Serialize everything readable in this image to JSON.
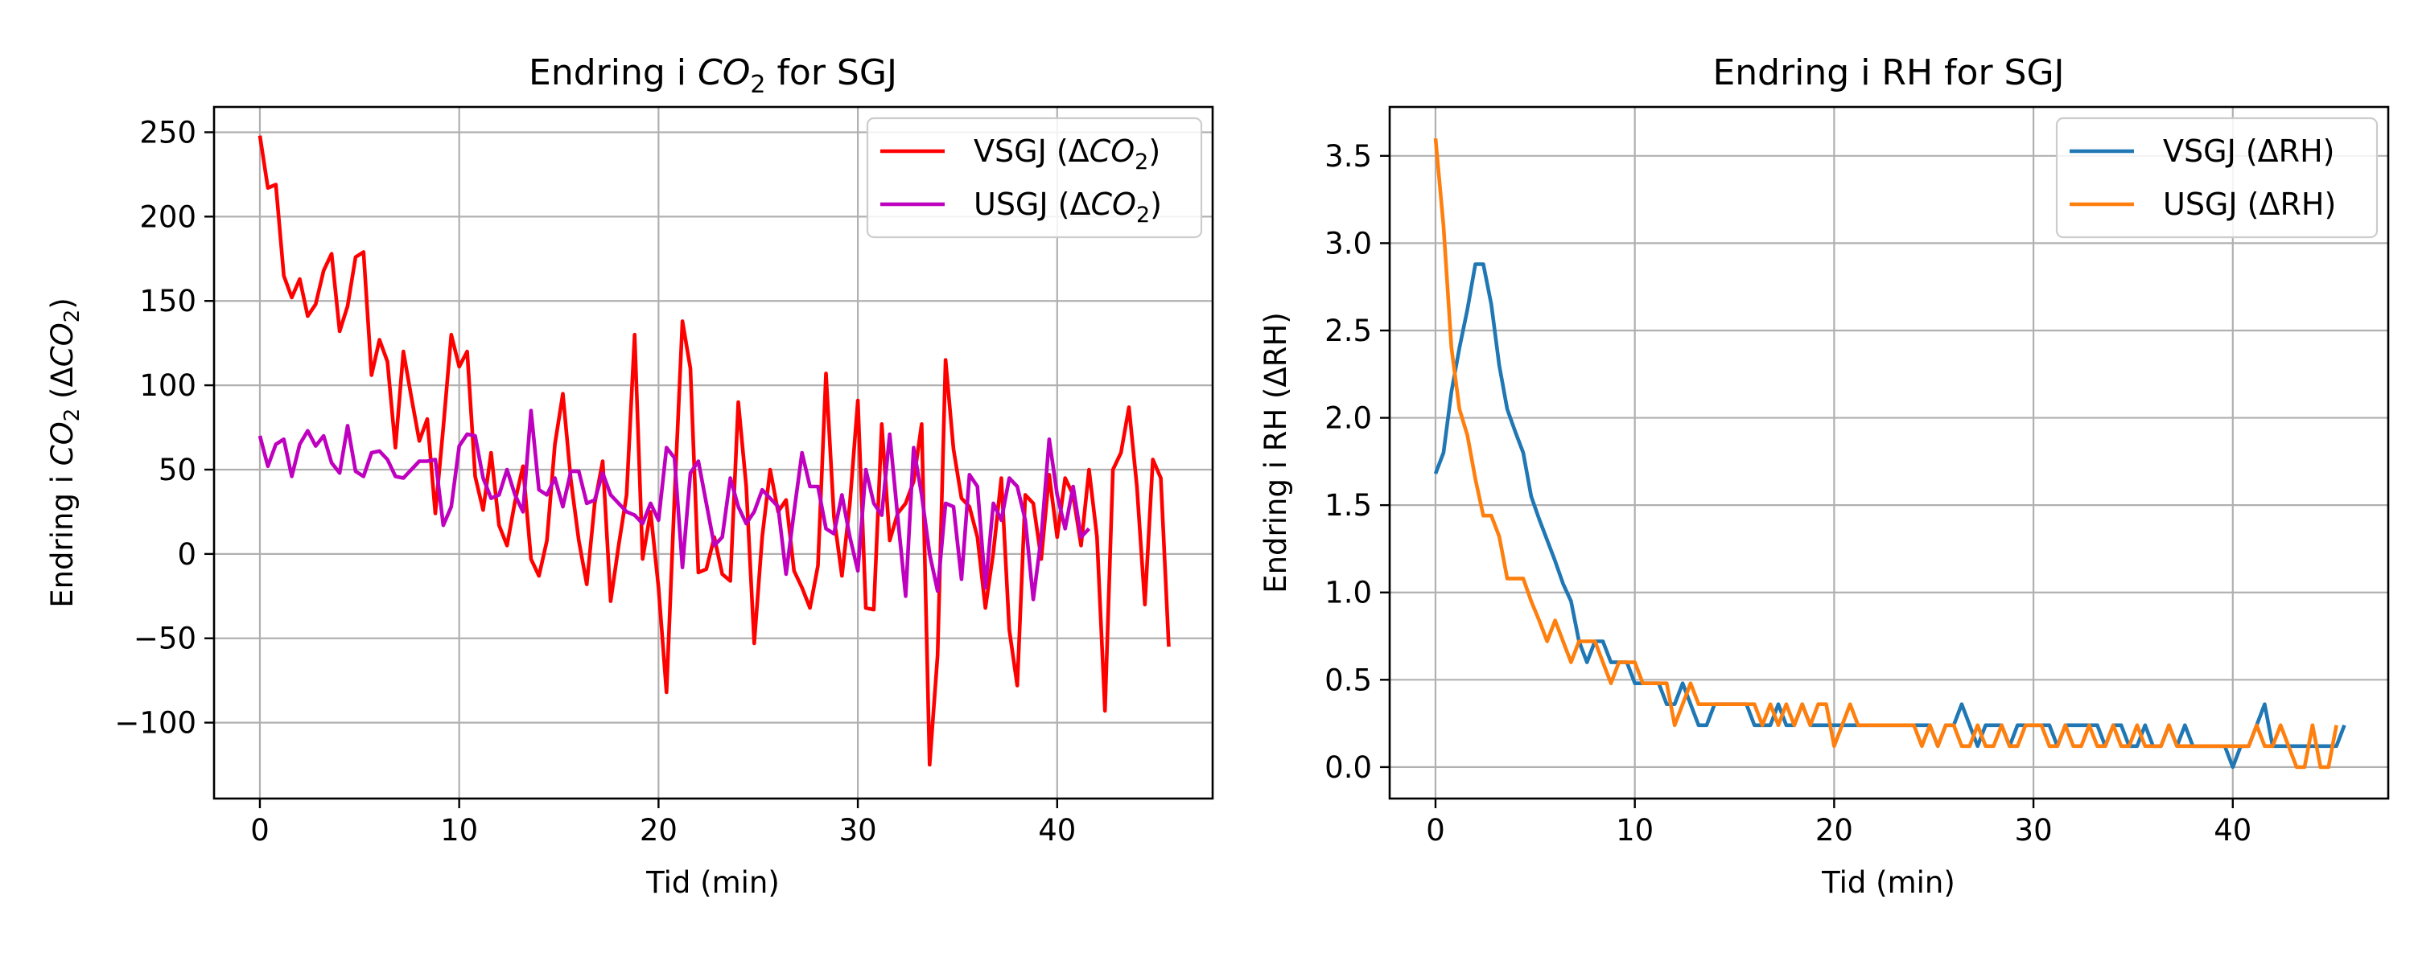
{
  "chart_data": [
    {
      "type": "line",
      "title_prefix": "Endring i ",
      "title_chem": "CO",
      "title_sub": "2",
      "title_suffix": " for SGJ",
      "xlabel": "Tid (min)",
      "ylabel_prefix": "Endring i ",
      "ylabel_chem": "CO",
      "ylabel_sub": "2",
      "ylabel_mid": " (Δ",
      "ylabel_chem2": "CO",
      "ylabel_sub2": "2",
      "ylabel_suffix": ")",
      "xlim": [
        -2.3,
        47.8
      ],
      "ylim": [
        -145,
        265
      ],
      "xticks": [
        0,
        10,
        20,
        30,
        40
      ],
      "yticks": [
        -100,
        -50,
        0,
        50,
        100,
        150,
        200,
        250
      ],
      "grid": true,
      "legend_position": "top-right",
      "series": [
        {
          "name_prefix": "VSGJ (Δ",
          "name_chem": "CO",
          "name_sub": "2",
          "name_suffix": ")",
          "color": "#ff0000",
          "x_step": 0.4,
          "values": [
            248,
            217,
            219,
            165,
            152,
            163,
            141,
            148,
            168,
            178,
            132,
            147,
            176,
            179,
            106,
            127,
            114,
            63,
            120,
            93,
            67,
            80,
            24,
            75,
            130,
            111,
            120,
            46,
            26,
            60,
            17,
            5,
            31,
            52,
            -3,
            -13,
            8,
            65,
            95,
            44,
            8,
            -18,
            30,
            55,
            -28,
            5,
            35,
            130,
            -3,
            25,
            -20,
            -82,
            33,
            138,
            110,
            -11,
            -9,
            10,
            -12,
            -16,
            90,
            40,
            -53,
            10,
            50,
            25,
            32,
            -10,
            -20,
            -32,
            -7,
            107,
            22,
            -13,
            30,
            91,
            -32,
            -33,
            77,
            8,
            24,
            30,
            43,
            77,
            -125,
            -60,
            115,
            62,
            33,
            28,
            10,
            -32,
            1,
            45,
            -45,
            -78,
            35,
            30,
            -3,
            47,
            10,
            45,
            35,
            5,
            50,
            10,
            -93,
            50,
            60,
            87,
            40,
            -30,
            56,
            45,
            -55
          ]
        },
        {
          "name_prefix": "USGJ (Δ",
          "name_chem": "CO",
          "name_sub": "2",
          "name_suffix": ")",
          "color": "#bf00bf",
          "x_step": 0.4,
          "values": [
            70,
            52,
            65,
            68,
            46,
            65,
            73,
            64,
            70,
            54,
            48,
            76,
            49,
            46,
            60,
            61,
            56,
            46,
            45,
            50,
            55,
            55,
            56,
            17,
            28,
            64,
            71,
            70,
            45,
            33,
            35,
            50,
            35,
            25,
            85,
            38,
            35,
            45,
            28,
            49,
            49,
            30,
            32,
            48,
            35,
            30,
            25,
            23,
            18,
            30,
            20,
            63,
            57,
            -8,
            48,
            55,
            30,
            5,
            10,
            45,
            28,
            18,
            25,
            38,
            33,
            28,
            -12,
            25,
            60,
            40,
            40,
            15,
            12,
            35,
            10,
            -10,
            50,
            30,
            23,
            71,
            22,
            -25,
            63,
            35,
            0,
            -22,
            30,
            28,
            -15,
            47,
            40,
            -20,
            30,
            20,
            45,
            40,
            20,
            -27,
            10,
            68,
            35,
            15,
            40,
            10,
            15
          ]
        }
      ]
    },
    {
      "type": "line",
      "title": "Endring i RH for SGJ",
      "xlabel": "Tid (min)",
      "ylabel": "Endring i RH (ΔRH)",
      "xlim": [
        -2.3,
        47.8
      ],
      "ylim": [
        -0.18,
        3.78
      ],
      "xticks": [
        0,
        10,
        20,
        30,
        40
      ],
      "yticks": [
        0.0,
        0.5,
        1.0,
        1.5,
        2.0,
        2.5,
        3.0,
        3.5
      ],
      "ytick_labels": [
        "0.0",
        "0.5",
        "1.0",
        "1.5",
        "2.0",
        "2.5",
        "3.0",
        "3.5"
      ],
      "grid": true,
      "legend_position": "top-right",
      "series": [
        {
          "name": "VSGJ (ΔRH)",
          "color": "#1f77b4",
          "x_step": 0.4,
          "values": [
            1.68,
            1.8,
            2.15,
            2.4,
            2.62,
            2.88,
            2.88,
            2.65,
            2.3,
            2.05,
            1.92,
            1.8,
            1.55,
            1.42,
            1.3,
            1.18,
            1.05,
            0.95,
            0.72,
            0.6,
            0.72,
            0.72,
            0.6,
            0.6,
            0.6,
            0.48,
            0.48,
            0.48,
            0.48,
            0.36,
            0.36,
            0.48,
            0.36,
            0.24,
            0.24,
            0.36,
            0.36,
            0.36,
            0.36,
            0.36,
            0.24,
            0.24,
            0.24,
            0.36,
            0.24,
            0.24,
            0.36,
            0.24,
            0.24,
            0.24,
            0.24,
            0.24,
            0.24,
            0.24,
            0.24,
            0.24,
            0.24,
            0.24,
            0.24,
            0.24,
            0.24,
            0.24,
            0.24,
            0.12,
            0.24,
            0.24,
            0.36,
            0.24,
            0.12,
            0.24,
            0.24,
            0.24,
            0.12,
            0.24,
            0.24,
            0.24,
            0.24,
            0.24,
            0.12,
            0.24,
            0.24,
            0.24,
            0.24,
            0.24,
            0.12,
            0.24,
            0.24,
            0.12,
            0.12,
            0.24,
            0.12,
            0.12,
            0.24,
            0.12,
            0.24,
            0.12,
            0.12,
            0.12,
            0.12,
            0.12,
            0.0,
            0.12,
            0.12,
            0.24,
            0.36,
            0.12,
            0.12,
            0.12,
            0.12,
            0.12,
            0.12,
            0.12,
            0.12,
            0.12,
            0.24
          ]
        },
        {
          "name": "USGJ (ΔRH)",
          "color": "#ff7f0e",
          "x_step": 0.4,
          "values": [
            3.6,
            3.1,
            2.4,
            2.05,
            1.9,
            1.65,
            1.44,
            1.44,
            1.32,
            1.08,
            1.08,
            1.08,
            0.95,
            0.84,
            0.72,
            0.84,
            0.72,
            0.6,
            0.72,
            0.72,
            0.72,
            0.6,
            0.48,
            0.6,
            0.6,
            0.6,
            0.48,
            0.48,
            0.48,
            0.48,
            0.24,
            0.36,
            0.48,
            0.36,
            0.36,
            0.36,
            0.36,
            0.36,
            0.36,
            0.36,
            0.36,
            0.24,
            0.36,
            0.24,
            0.36,
            0.24,
            0.36,
            0.24,
            0.36,
            0.36,
            0.12,
            0.24,
            0.36,
            0.24,
            0.24,
            0.24,
            0.24,
            0.24,
            0.24,
            0.24,
            0.24,
            0.12,
            0.24,
            0.12,
            0.24,
            0.24,
            0.12,
            0.12,
            0.24,
            0.12,
            0.12,
            0.24,
            0.12,
            0.12,
            0.24,
            0.24,
            0.24,
            0.12,
            0.12,
            0.24,
            0.12,
            0.12,
            0.24,
            0.12,
            0.12,
            0.24,
            0.12,
            0.12,
            0.24,
            0.12,
            0.12,
            0.12,
            0.24,
            0.12,
            0.12,
            0.12,
            0.12,
            0.12,
            0.12,
            0.12,
            0.12,
            0.12,
            0.12,
            0.24,
            0.12,
            0.12,
            0.24,
            0.12,
            0.0,
            0.0,
            0.24,
            0.0,
            0.0,
            0.24
          ]
        }
      ]
    }
  ]
}
